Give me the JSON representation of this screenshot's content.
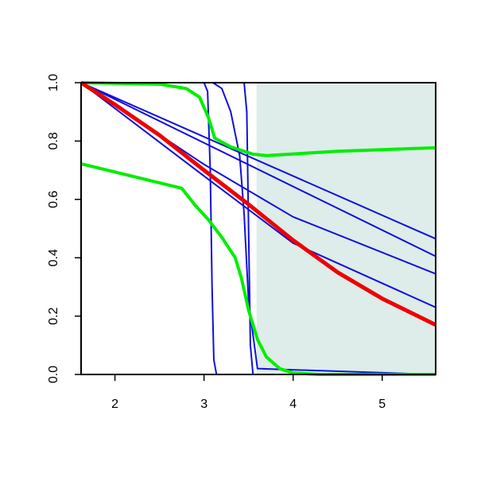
{
  "chart_data": {
    "type": "line",
    "xlim": [
      1.62,
      5.6
    ],
    "ylim": [
      0,
      1
    ],
    "xticks": [
      2,
      3,
      4,
      5
    ],
    "yticks": [
      {
        "value": 0,
        "label": "0.0"
      },
      0.2,
      0.4,
      0.6,
      0.8,
      {
        "value": 1,
        "label": "1.0"
      }
    ],
    "shaded_xrange": [
      3.59,
      5.6
    ],
    "shade_color": "#deecea",
    "series": [
      {
        "color": "#1010dd",
        "width": 2,
        "x": [
          1.62,
          5.6
        ],
        "values": [
          1.0,
          0.465
        ]
      },
      {
        "color": "#1010dd",
        "width": 2,
        "x": [
          1.62,
          5.6
        ],
        "values": [
          1.0,
          0.405
        ]
      },
      {
        "color": "#1010dd",
        "width": 2,
        "x": [
          1.62,
          3.0,
          4.0,
          5.6
        ],
        "values": [
          1.0,
          0.72,
          0.54,
          0.345
        ]
      },
      {
        "color": "#1010dd",
        "width": 2,
        "x": [
          1.62,
          3.0,
          4.0,
          5.6
        ],
        "values": [
          1.0,
          0.68,
          0.45,
          0.23
        ]
      },
      {
        "color": "#1010dd",
        "width": 2,
        "x": [
          1.62,
          3.0,
          3.04,
          3.07,
          3.09,
          3.11,
          3.14,
          5.6
        ],
        "values": [
          1.0,
          1.0,
          0.97,
          0.7,
          0.3,
          0.05,
          0.0,
          0.0
        ]
      },
      {
        "color": "#1010dd",
        "width": 2,
        "x": [
          1.62,
          3.45,
          3.48,
          3.5,
          3.52,
          3.55,
          5.6
        ],
        "values": [
          1.0,
          1.0,
          0.9,
          0.5,
          0.1,
          0.0,
          0.0
        ]
      },
      {
        "color": "#1010dd",
        "width": 2,
        "x": [
          1.62,
          3.1,
          3.2,
          3.3,
          3.4,
          3.45,
          3.5,
          3.6,
          5.6
        ],
        "values": [
          1.0,
          1.0,
          0.98,
          0.9,
          0.75,
          0.55,
          0.25,
          0.02,
          0.0
        ]
      },
      {
        "color": "#00ee00",
        "width": 4,
        "x": [
          1.62,
          2.5,
          2.8,
          2.95,
          3.05,
          3.12,
          3.3,
          3.55,
          3.7,
          4.5,
          5.6
        ],
        "values": [
          1.0,
          0.995,
          0.98,
          0.95,
          0.88,
          0.81,
          0.78,
          0.755,
          0.75,
          0.765,
          0.777
        ]
      },
      {
        "color": "#00ee00",
        "width": 4,
        "x": [
          1.62,
          2.75,
          2.9,
          3.05,
          3.2,
          3.35,
          3.42,
          3.5,
          3.6,
          3.7,
          3.85,
          4.0,
          4.3,
          5.6
        ],
        "values": [
          0.722,
          0.638,
          0.58,
          0.53,
          0.47,
          0.4,
          0.33,
          0.22,
          0.12,
          0.06,
          0.02,
          0.005,
          0.0,
          0.0
        ]
      },
      {
        "color": "#ee0000",
        "width": 5,
        "x": [
          1.62,
          2.0,
          2.5,
          3.0,
          3.5,
          4.0,
          4.5,
          5.0,
          5.6
        ],
        "values": [
          1.0,
          0.925,
          0.82,
          0.7,
          0.583,
          0.46,
          0.35,
          0.26,
          0.17
        ]
      }
    ]
  }
}
